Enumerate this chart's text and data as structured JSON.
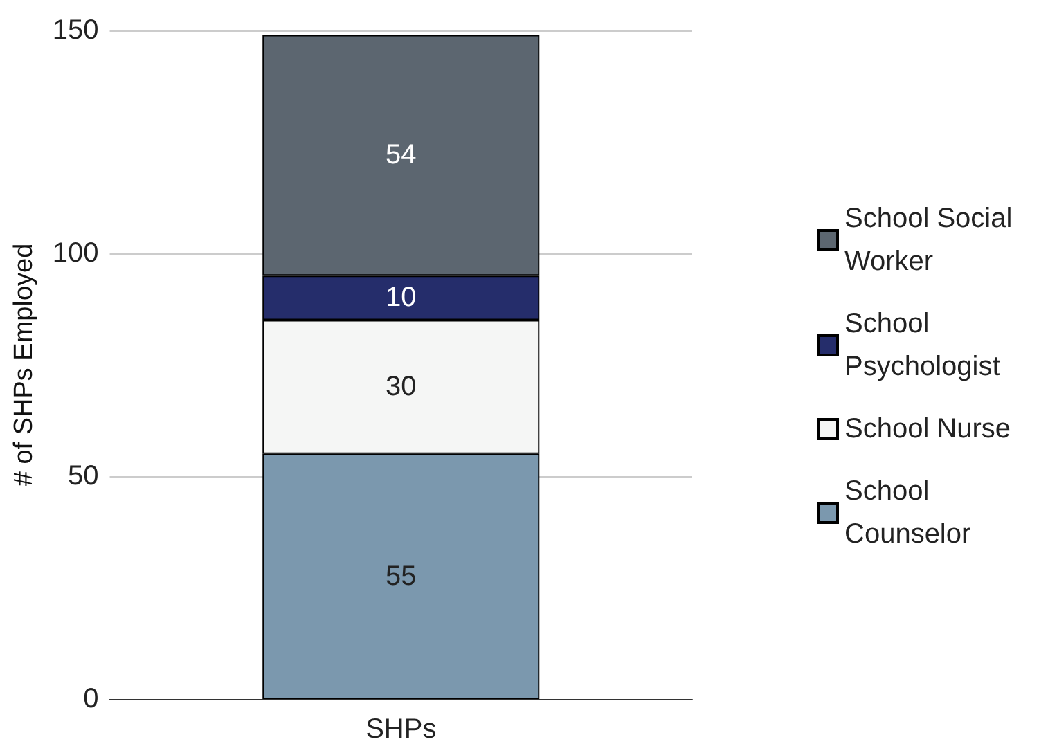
{
  "chart_data": {
    "type": "bar",
    "stacked": true,
    "ylabel": "# of SHPs Employed",
    "categories": [
      "SHPs"
    ],
    "series": [
      {
        "name": "School Counselor",
        "color": "#7b98ae",
        "values": [
          55
        ]
      },
      {
        "name": "School Nurse",
        "color": "#f5f6f5",
        "values": [
          30
        ]
      },
      {
        "name": "School Psychologist",
        "color": "#252d6b",
        "values": [
          10
        ]
      },
      {
        "name": "School Social Worker",
        "color": "#5c6670",
        "values": [
          54
        ]
      }
    ],
    "ylim": [
      0,
      150
    ],
    "yticks": [
      0,
      50,
      100,
      150
    ],
    "grid": "y",
    "legend": "right",
    "data_labels": true
  }
}
